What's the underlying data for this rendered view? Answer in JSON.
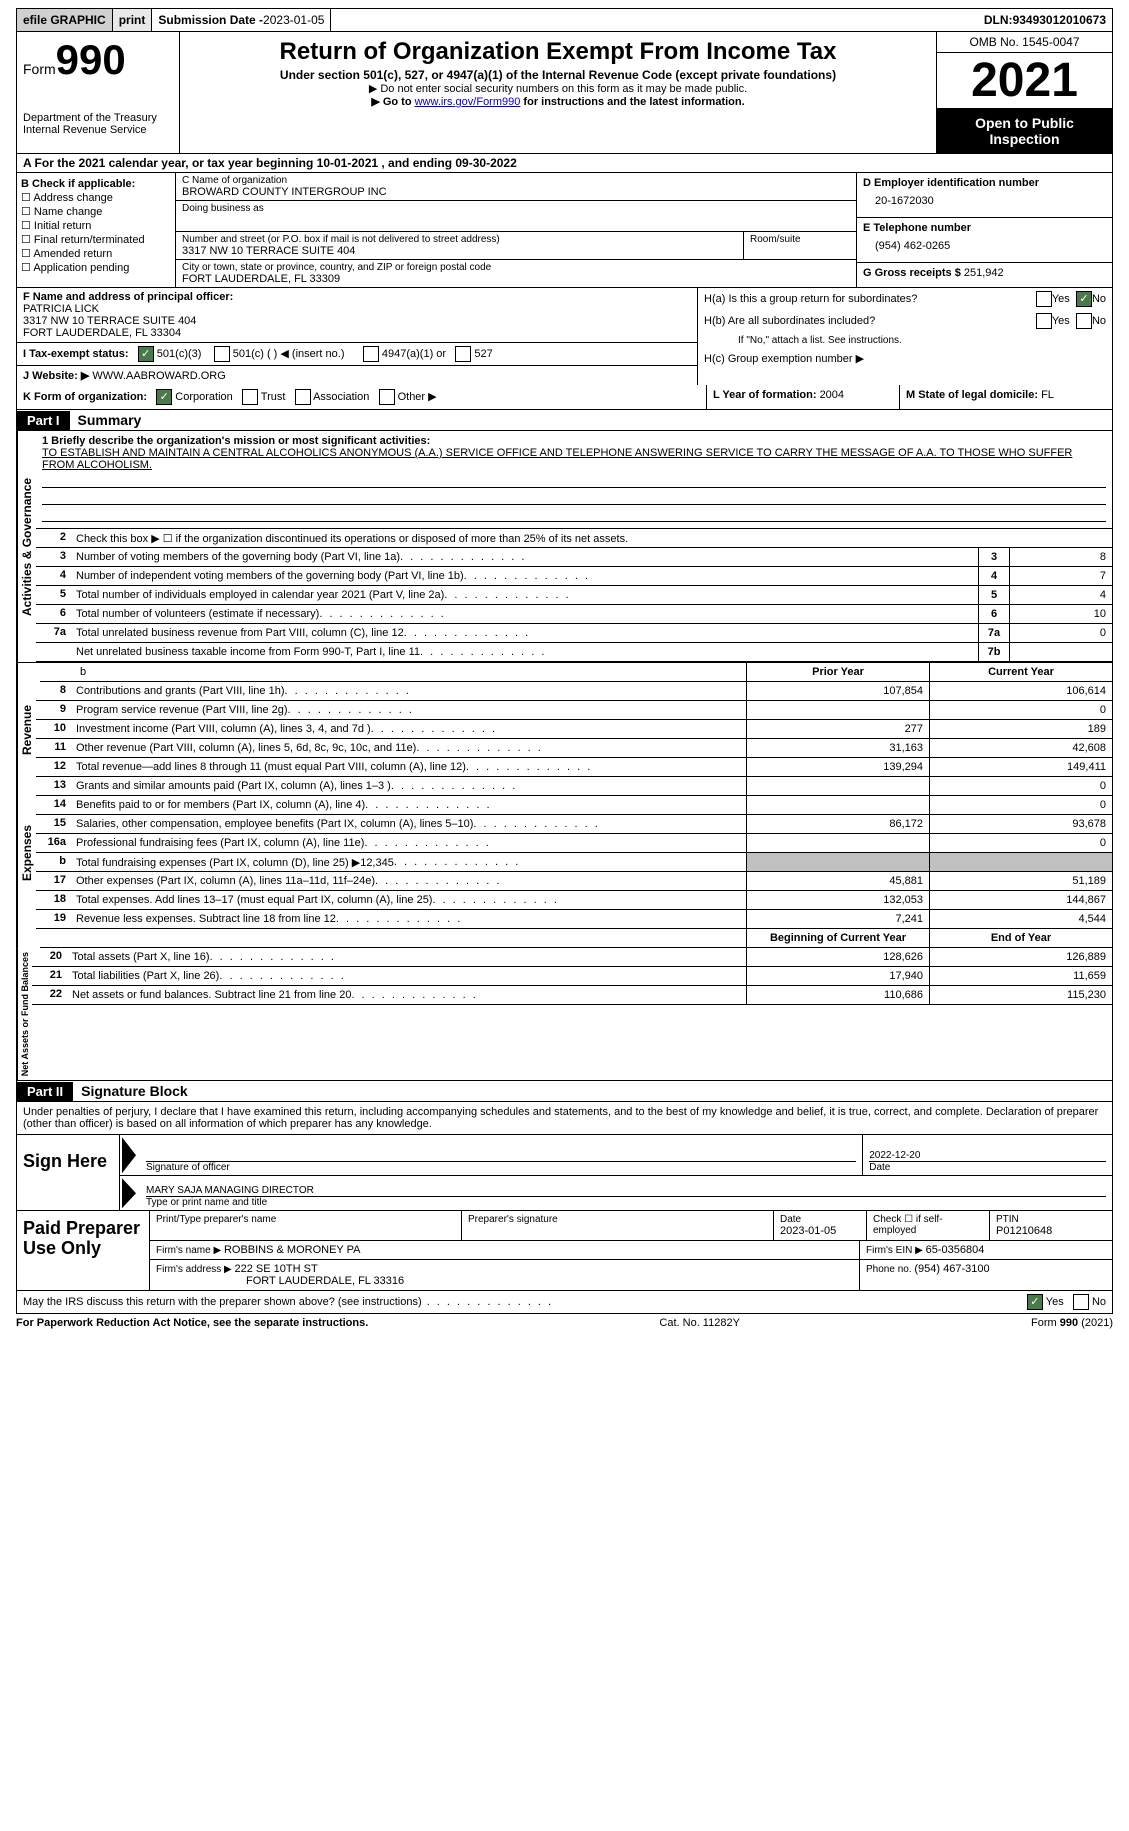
{
  "top": {
    "efile": "efile GRAPHIC",
    "print": "print",
    "submission_label": "Submission Date - ",
    "submission_date": "2023-01-05",
    "dln_label": "DLN: ",
    "dln": "93493012010673"
  },
  "header": {
    "form_word": "Form",
    "form_number": "990",
    "dept1": "Department of the Treasury",
    "dept2": "Internal Revenue Service",
    "title": "Return of Organization Exempt From Income Tax",
    "subtitle": "Under section 501(c), 527, or 4947(a)(1) of the Internal Revenue Code (except private foundations)",
    "note1": "▶ Do not enter social security numbers on this form as it may be made public.",
    "note2_pre": "▶ Go to ",
    "note2_link": "www.irs.gov/Form990",
    "note2_post": " for instructions and the latest information.",
    "omb": "OMB No. 1545-0047",
    "year": "2021",
    "open": "Open to Public Inspection"
  },
  "rowA": "A For the 2021 calendar year, or tax year beginning 10-01-2021   , and ending 09-30-2022",
  "colB": {
    "label": "B Check if applicable:",
    "items": [
      "Address change",
      "Name change",
      "Initial return",
      "Final return/terminated",
      "Amended return",
      "Application pending"
    ]
  },
  "colC": {
    "name_lbl": "C Name of organization",
    "name": "BROWARD COUNTY INTERGROUP INC",
    "dba_lbl": "Doing business as",
    "street_lbl": "Number and street (or P.O. box if mail is not delivered to street address)",
    "room_lbl": "Room/suite",
    "street": "3317 NW 10 TERRACE SUITE 404",
    "city_lbl": "City or town, state or province, country, and ZIP or foreign postal code",
    "city": "FORT LAUDERDALE, FL  33309"
  },
  "colD": {
    "ein_lbl": "D Employer identification number",
    "ein": "20-1672030",
    "tel_lbl": "E Telephone number",
    "tel": "(954) 462-0265",
    "gross_lbl": "G Gross receipts $ ",
    "gross": "251,942"
  },
  "rowF": {
    "lbl": "F Name and address of principal officer:",
    "name": "PATRICIA LICK",
    "addr1": "3317 NW 10 TERRACE SUITE 404",
    "addr2": "FORT LAUDERDALE, FL  33304"
  },
  "rowH": {
    "ha": "H(a)  Is this a group return for subordinates?",
    "hb": "H(b)  Are all subordinates included?",
    "hb_note": "If \"No,\" attach a list. See instructions.",
    "hc": "H(c)  Group exemption number ▶",
    "yes": "Yes",
    "no": "No"
  },
  "rowI": {
    "lbl": "I    Tax-exempt status:",
    "opt1": "501(c)(3)",
    "opt2": "501(c) (  ) ◀ (insert no.)",
    "opt3": "4947(a)(1) or",
    "opt4": "527"
  },
  "rowJ": {
    "lbl": "J   Website: ▶  ",
    "val": "WWW.AABROWARD.ORG"
  },
  "rowK": {
    "lbl": "K Form of organization:",
    "corp": "Corporation",
    "trust": "Trust",
    "assoc": "Association",
    "other": "Other ▶",
    "L_lbl": "L Year of formation: ",
    "L_val": "2004",
    "M_lbl": "M State of legal domicile: ",
    "M_val": "FL"
  },
  "part1": {
    "hdr": "Part I",
    "title": "Summary",
    "q1_lbl": "1  Briefly describe the organization's mission or most significant activities:",
    "q1_text": "TO ESTABLISH AND MAINTAIN A CENTRAL ALCOHOLICS ANONYMOUS (A.A.) SERVICE OFFICE AND TELEPHONE ANSWERING SERVICE TO CARRY THE MESSAGE OF A.A. TO THOSE WHO SUFFER FROM ALCOHOLISM.",
    "q2": "Check this box ▶ ☐  if the organization discontinued its operations or disposed of more than 25% of its net assets.",
    "vert_ag": "Activities & Governance",
    "vert_rev": "Revenue",
    "vert_exp": "Expenses",
    "vert_na": "Net Assets or Fund Balances",
    "lines_ag": [
      {
        "n": "3",
        "d": "Number of voting members of the governing body (Part VI, line 1a)",
        "bn": "3",
        "bv": "8"
      },
      {
        "n": "4",
        "d": "Number of independent voting members of the governing body (Part VI, line 1b)",
        "bn": "4",
        "bv": "7"
      },
      {
        "n": "5",
        "d": "Total number of individuals employed in calendar year 2021 (Part V, line 2a)",
        "bn": "5",
        "bv": "4"
      },
      {
        "n": "6",
        "d": "Total number of volunteers (estimate if necessary)",
        "bn": "6",
        "bv": "10"
      },
      {
        "n": "7a",
        "d": "Total unrelated business revenue from Part VIII, column (C), line 12",
        "bn": "7a",
        "bv": "0"
      },
      {
        "n": "",
        "d": "Net unrelated business taxable income from Form 990-T, Part I, line 11",
        "bn": "7b",
        "bv": ""
      }
    ],
    "py_hdr": "Prior Year",
    "cy_hdr": "Current Year",
    "lines_rev": [
      {
        "n": "8",
        "d": "Contributions and grants (Part VIII, line 1h)",
        "py": "107,854",
        "cy": "106,614"
      },
      {
        "n": "9",
        "d": "Program service revenue (Part VIII, line 2g)",
        "py": "",
        "cy": "0"
      },
      {
        "n": "10",
        "d": "Investment income (Part VIII, column (A), lines 3, 4, and 7d )",
        "py": "277",
        "cy": "189"
      },
      {
        "n": "11",
        "d": "Other revenue (Part VIII, column (A), lines 5, 6d, 8c, 9c, 10c, and 11e)",
        "py": "31,163",
        "cy": "42,608"
      },
      {
        "n": "12",
        "d": "Total revenue—add lines 8 through 11 (must equal Part VIII, column (A), line 12)",
        "py": "139,294",
        "cy": "149,411"
      }
    ],
    "lines_exp": [
      {
        "n": "13",
        "d": "Grants and similar amounts paid (Part IX, column (A), lines 1–3 )",
        "py": "",
        "cy": "0"
      },
      {
        "n": "14",
        "d": "Benefits paid to or for members (Part IX, column (A), line 4)",
        "py": "",
        "cy": "0"
      },
      {
        "n": "15",
        "d": "Salaries, other compensation, employee benefits (Part IX, column (A), lines 5–10)",
        "py": "86,172",
        "cy": "93,678"
      },
      {
        "n": "16a",
        "d": "Professional fundraising fees (Part IX, column (A), line 11e)",
        "py": "",
        "cy": "0"
      },
      {
        "n": "b",
        "d": "Total fundraising expenses (Part IX, column (D), line 25) ▶12,345",
        "py": "shaded",
        "cy": "shaded"
      },
      {
        "n": "17",
        "d": "Other expenses (Part IX, column (A), lines 11a–11d, 11f–24e)",
        "py": "45,881",
        "cy": "51,189"
      },
      {
        "n": "18",
        "d": "Total expenses. Add lines 13–17 (must equal Part IX, column (A), line 25)",
        "py": "132,053",
        "cy": "144,867"
      },
      {
        "n": "19",
        "d": "Revenue less expenses. Subtract line 18 from line 12",
        "py": "7,241",
        "cy": "4,544"
      }
    ],
    "boy_hdr": "Beginning of Current Year",
    "eoy_hdr": "End of Year",
    "lines_na": [
      {
        "n": "20",
        "d": "Total assets (Part X, line 16)",
        "py": "128,626",
        "cy": "126,889"
      },
      {
        "n": "21",
        "d": "Total liabilities (Part X, line 26)",
        "py": "17,940",
        "cy": "11,659"
      },
      {
        "n": "22",
        "d": "Net assets or fund balances. Subtract line 21 from line 20",
        "py": "110,686",
        "cy": "115,230"
      }
    ]
  },
  "part2": {
    "hdr": "Part II",
    "title": "Signature Block",
    "intro": "Under penalties of perjury, I declare that I have examined this return, including accompanying schedules and statements, and to the best of my knowledge and belief, it is true, correct, and complete. Declaration of preparer (other than officer) is based on all information of which preparer has any knowledge.",
    "sign_here": "Sign Here",
    "sig_officer_lbl": "Signature of officer",
    "sig_date": "2022-12-20",
    "date_lbl": "Date",
    "officer_name": "MARY SAJA  MANAGING DIRECTOR",
    "officer_name_lbl": "Type or print name and title",
    "paid": "Paid Preparer Use Only",
    "prep_name_lbl": "Print/Type preparer's name",
    "prep_sig_lbl": "Preparer's signature",
    "prep_date_lbl": "Date",
    "prep_date": "2023-01-05",
    "prep_check_lbl": "Check ☐ if self-employed",
    "ptin_lbl": "PTIN",
    "ptin": "P01210648",
    "firm_name_lbl": "Firm's name      ▶ ",
    "firm_name": "ROBBINS & MORONEY PA",
    "firm_ein_lbl": "Firm's EIN ▶ ",
    "firm_ein": "65-0356804",
    "firm_addr_lbl": "Firm's address ▶ ",
    "firm_addr1": "222 SE 10TH ST",
    "firm_addr2": "FORT LAUDERDALE, FL  33316",
    "firm_phone_lbl": "Phone no. ",
    "firm_phone": "(954) 467-3100",
    "may_irs": "May the IRS discuss this return with the preparer shown above? (see instructions)",
    "yes": "Yes",
    "no": "No"
  },
  "footer": {
    "l": "For Paperwork Reduction Act Notice, see the separate instructions.",
    "m": "Cat. No. 11282Y",
    "r": "Form 990 (2021)"
  },
  "colors": {
    "link": "#0000cc",
    "checked_green": "#4a7a4a",
    "shaded": "#c0c0c0"
  }
}
